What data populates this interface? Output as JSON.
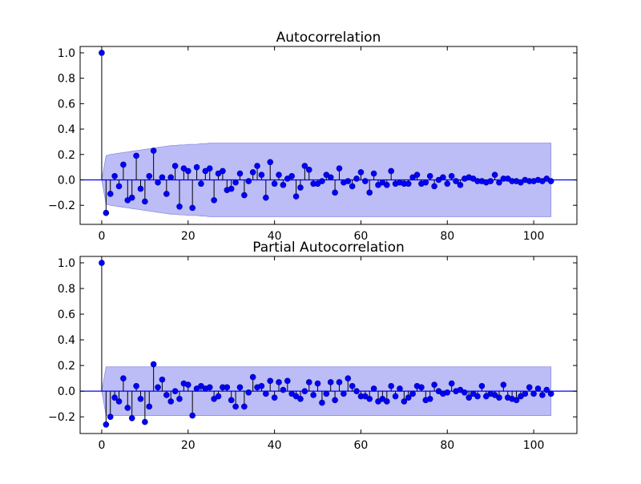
{
  "chart_data": [
    {
      "type": "stem",
      "title": "Autocorrelation",
      "xlabel": "",
      "ylabel": "",
      "xlim": [
        -5,
        110
      ],
      "ylim": [
        -0.35,
        1.05
      ],
      "xticks": [
        0,
        20,
        40,
        60,
        80,
        100
      ],
      "xtick_labels": [
        "0",
        "20",
        "40",
        "60",
        "80",
        "100"
      ],
      "yticks": [
        -0.2,
        0.0,
        0.2,
        0.4,
        0.6,
        0.8,
        1.0
      ],
      "ytick_labels": [
        "−0.2",
        "0.0",
        "0.2",
        "0.4",
        "0.6",
        "0.8",
        "1.0"
      ],
      "grid": false,
      "colors": {
        "marker": "#0000ff",
        "stem": "#000000",
        "zero_line": "#0000ff",
        "band_fill": "#bcbcf7",
        "band_edge": "#8f8fe6"
      },
      "lags": [
        0,
        1,
        2,
        3,
        4,
        5,
        6,
        7,
        8,
        9,
        10,
        11,
        12,
        13,
        14,
        15,
        16,
        17,
        18,
        19,
        20,
        21,
        22,
        23,
        24,
        25,
        26,
        27,
        28,
        29,
        30,
        31,
        32,
        33,
        34,
        35,
        36,
        37,
        38,
        39,
        40,
        41,
        42,
        43,
        44,
        45,
        46,
        47,
        48,
        49,
        50,
        51,
        52,
        53,
        54,
        55,
        56,
        57,
        58,
        59,
        60,
        61,
        62,
        63,
        64,
        65,
        66,
        67,
        68,
        69,
        70,
        71,
        72,
        73,
        74,
        75,
        76,
        77,
        78,
        79,
        80,
        81,
        82,
        83,
        84,
        85,
        86,
        87,
        88,
        89,
        90,
        91,
        92,
        93,
        94,
        95,
        96,
        97,
        98,
        99,
        100,
        101,
        102,
        103,
        104
      ],
      "values": [
        1.0,
        -0.26,
        -0.11,
        0.03,
        -0.05,
        0.12,
        -0.16,
        -0.14,
        0.19,
        -0.07,
        -0.17,
        0.03,
        0.23,
        -0.02,
        0.02,
        -0.11,
        0.02,
        0.11,
        -0.21,
        0.09,
        0.07,
        -0.22,
        0.1,
        -0.03,
        0.07,
        0.09,
        -0.16,
        0.05,
        0.07,
        -0.08,
        -0.07,
        -0.02,
        0.05,
        -0.12,
        -0.01,
        0.06,
        0.11,
        0.04,
        -0.14,
        0.14,
        -0.03,
        0.04,
        -0.04,
        0.01,
        0.03,
        -0.13,
        -0.06,
        0.11,
        0.08,
        -0.03,
        -0.03,
        -0.01,
        0.04,
        0.02,
        -0.1,
        0.09,
        -0.02,
        -0.01,
        -0.05,
        0.01,
        0.06,
        -0.01,
        -0.1,
        0.05,
        -0.04,
        -0.02,
        -0.04,
        0.07,
        -0.03,
        -0.02,
        -0.03,
        -0.03,
        0.02,
        0.04,
        -0.03,
        -0.02,
        0.03,
        -0.05,
        0.0,
        0.02,
        -0.03,
        0.03,
        -0.01,
        -0.04,
        0.01,
        0.02,
        0.01,
        -0.01,
        -0.01,
        -0.02,
        -0.01,
        0.04,
        -0.02,
        0.01,
        0.01,
        -0.01,
        -0.01,
        -0.02,
        0.0,
        -0.01,
        -0.01,
        0.0,
        -0.01,
        0.01,
        -0.01,
        0.0,
        0.01,
        -0.01,
        0.0
      ],
      "conf_upper": [
        0.0,
        0.19,
        0.2,
        0.205,
        0.21,
        0.215,
        0.22,
        0.225,
        0.23,
        0.235,
        0.24,
        0.245,
        0.25,
        0.255,
        0.26,
        0.265,
        0.27,
        0.27,
        0.275,
        0.275,
        0.28,
        0.28,
        0.28,
        0.285,
        0.285,
        0.29,
        0.29,
        0.29,
        0.29,
        0.29,
        0.29,
        0.29,
        0.29,
        0.29,
        0.29,
        0.29,
        0.29,
        0.29,
        0.29,
        0.29,
        0.29,
        0.29,
        0.29,
        0.29,
        0.29,
        0.29,
        0.29,
        0.29,
        0.29,
        0.29,
        0.29,
        0.29,
        0.29,
        0.29,
        0.29,
        0.29,
        0.29,
        0.29,
        0.29,
        0.29,
        0.29,
        0.29,
        0.29,
        0.29,
        0.29,
        0.29,
        0.29,
        0.29,
        0.29,
        0.29,
        0.29,
        0.29,
        0.29,
        0.29,
        0.29,
        0.29,
        0.29,
        0.29,
        0.29,
        0.29,
        0.29,
        0.29,
        0.29,
        0.29,
        0.29,
        0.29,
        0.29,
        0.29,
        0.29,
        0.29,
        0.29,
        0.29,
        0.29,
        0.29,
        0.29,
        0.29,
        0.29,
        0.29,
        0.29,
        0.29,
        0.29,
        0.29,
        0.29,
        0.29,
        0.29
      ]
    },
    {
      "type": "stem",
      "title": "Partial Autocorrelation",
      "xlabel": "",
      "ylabel": "",
      "xlim": [
        -5,
        110
      ],
      "ylim": [
        -0.33,
        1.05
      ],
      "xticks": [
        0,
        20,
        40,
        60,
        80,
        100
      ],
      "xtick_labels": [
        "0",
        "20",
        "40",
        "60",
        "80",
        "100"
      ],
      "yticks": [
        -0.2,
        0.0,
        0.2,
        0.4,
        0.6,
        0.8,
        1.0
      ],
      "ytick_labels": [
        "−0.2",
        "0.0",
        "0.2",
        "0.4",
        "0.6",
        "0.8",
        "1.0"
      ],
      "grid": false,
      "colors": {
        "marker": "#0000ff",
        "stem": "#000000",
        "zero_line": "#0000ff",
        "band_fill": "#bcbcf7",
        "band_edge": "#8f8fe6"
      },
      "lags": [
        0,
        1,
        2,
        3,
        4,
        5,
        6,
        7,
        8,
        9,
        10,
        11,
        12,
        13,
        14,
        15,
        16,
        17,
        18,
        19,
        20,
        21,
        22,
        23,
        24,
        25,
        26,
        27,
        28,
        29,
        30,
        31,
        32,
        33,
        34,
        35,
        36,
        37,
        38,
        39,
        40,
        41,
        42,
        43,
        44,
        45,
        46,
        47,
        48,
        49,
        50,
        51,
        52,
        53,
        54,
        55,
        56,
        57,
        58,
        59,
        60,
        61,
        62,
        63,
        64,
        65,
        66,
        67,
        68,
        69,
        70,
        71,
        72,
        73,
        74,
        75,
        76,
        77,
        78,
        79,
        80,
        81,
        82,
        83,
        84,
        85,
        86,
        87,
        88,
        89,
        90,
        91,
        92,
        93,
        94,
        95,
        96,
        97,
        98,
        99,
        100,
        101,
        102,
        103,
        104
      ],
      "values": [
        1.0,
        -0.26,
        -0.2,
        -0.05,
        -0.08,
        0.1,
        -0.13,
        -0.21,
        0.04,
        -0.06,
        -0.24,
        -0.12,
        0.21,
        0.03,
        0.09,
        -0.03,
        -0.08,
        0.0,
        -0.06,
        0.06,
        0.05,
        -0.19,
        0.02,
        0.04,
        0.02,
        0.03,
        -0.06,
        -0.04,
        0.03,
        0.03,
        -0.07,
        -0.12,
        0.03,
        -0.12,
        -0.01,
        0.11,
        0.03,
        0.04,
        -0.02,
        0.08,
        -0.05,
        0.07,
        0.01,
        0.08,
        -0.02,
        -0.04,
        -0.06,
        0.0,
        0.07,
        -0.03,
        0.06,
        -0.09,
        -0.02,
        0.07,
        -0.07,
        0.07,
        -0.02,
        0.1,
        0.04,
        0.0,
        -0.04,
        -0.04,
        -0.06,
        0.02,
        -0.08,
        -0.06,
        -0.08,
        0.04,
        -0.04,
        0.02,
        -0.08,
        -0.05,
        -0.02,
        0.04,
        0.03,
        -0.07,
        -0.06,
        0.05,
        0.0,
        -0.02,
        -0.01,
        0.06,
        0.0,
        0.01,
        -0.01,
        -0.05,
        -0.02,
        -0.04,
        0.04,
        -0.04,
        -0.02,
        -0.03,
        -0.05,
        0.05,
        -0.05,
        -0.06,
        -0.07,
        -0.04,
        -0.02,
        0.03,
        -0.02,
        0.02,
        -0.03,
        0.01,
        -0.02
      ],
      "conf_upper": [
        0.0,
        0.19,
        0.19,
        0.19,
        0.19,
        0.19,
        0.19,
        0.19,
        0.19,
        0.19,
        0.19,
        0.19,
        0.19,
        0.19,
        0.19,
        0.19,
        0.19,
        0.19,
        0.19,
        0.19,
        0.19,
        0.19,
        0.19,
        0.19,
        0.19,
        0.19,
        0.19,
        0.19,
        0.19,
        0.19,
        0.19,
        0.19,
        0.19,
        0.19,
        0.19,
        0.19,
        0.19,
        0.19,
        0.19,
        0.19,
        0.19,
        0.19,
        0.19,
        0.19,
        0.19,
        0.19,
        0.19,
        0.19,
        0.19,
        0.19,
        0.19,
        0.19,
        0.19,
        0.19,
        0.19,
        0.19,
        0.19,
        0.19,
        0.19,
        0.19,
        0.19,
        0.19,
        0.19,
        0.19,
        0.19,
        0.19,
        0.19,
        0.19,
        0.19,
        0.19,
        0.19,
        0.19,
        0.19,
        0.19,
        0.19,
        0.19,
        0.19,
        0.19,
        0.19,
        0.19,
        0.19,
        0.19,
        0.19,
        0.19,
        0.19,
        0.19,
        0.19,
        0.19,
        0.19,
        0.19,
        0.19,
        0.19,
        0.19,
        0.19,
        0.19,
        0.19,
        0.19,
        0.19,
        0.19,
        0.19,
        0.19,
        0.19,
        0.19,
        0.19,
        0.19
      ]
    }
  ]
}
